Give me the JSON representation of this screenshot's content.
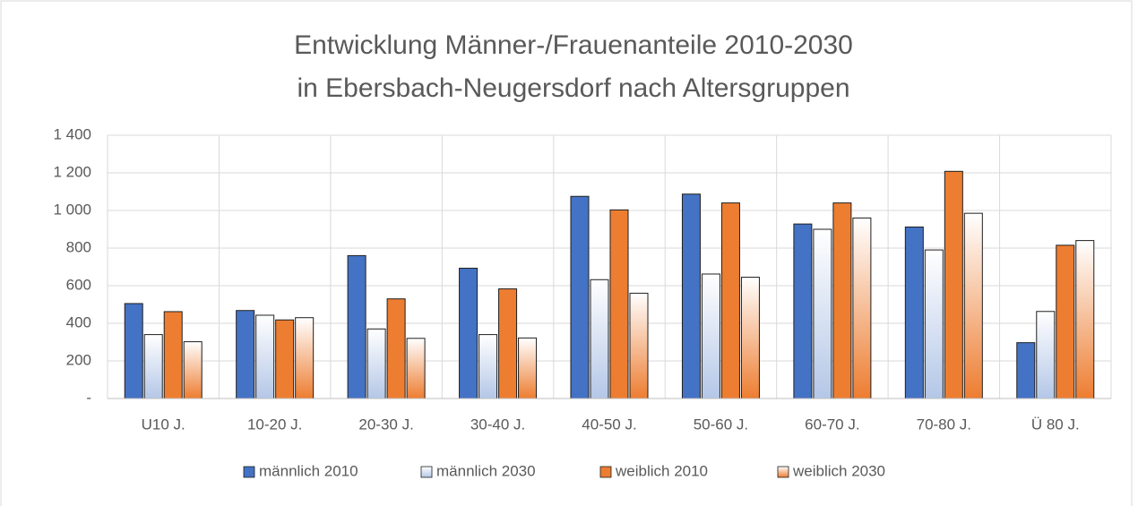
{
  "chart_data": {
    "type": "bar",
    "title": [
      "Entwicklung Männer-/Frauenanteile 2010-2030",
      "in Ebersbach-Neugersdorf nach Altersgruppen"
    ],
    "categories": [
      "U10 J.",
      "10-20 J.",
      "20-30 J.",
      "30-40 J.",
      "40-50 J.",
      "50-60 J.",
      "60-70 J.",
      "70-80 J.",
      "Ü 80 J."
    ],
    "series": [
      {
        "name": "männlich 2010",
        "color": "#4472c4",
        "gradient": false,
        "values": [
          505,
          468,
          760,
          693,
          1075,
          1087,
          928,
          912,
          297
        ]
      },
      {
        "name": "männlich 2030",
        "color": "#b4c7e7",
        "gradient": true,
        "values": [
          340,
          443,
          370,
          340,
          632,
          662,
          900,
          790,
          463
        ]
      },
      {
        "name": "weiblich 2010",
        "color": "#ed7d31",
        "gradient": false,
        "values": [
          462,
          418,
          530,
          583,
          1003,
          1040,
          1040,
          1208,
          815
        ]
      },
      {
        "name": "weiblich 2030",
        "color": "#ed7d31",
        "gradient": true,
        "values": [
          302,
          430,
          320,
          322,
          560,
          645,
          960,
          985,
          840
        ]
      }
    ],
    "ylim": [
      0,
      1400
    ],
    "yticks": [
      {
        "value": 0,
        "label": "-"
      },
      200,
      400,
      600,
      800,
      {
        "value": 1000,
        "label": "1 000"
      },
      {
        "value": 1200,
        "label": "1 200"
      },
      {
        "value": 1400,
        "label": "1 400"
      }
    ],
    "grid": true,
    "legend": "bottom"
  }
}
